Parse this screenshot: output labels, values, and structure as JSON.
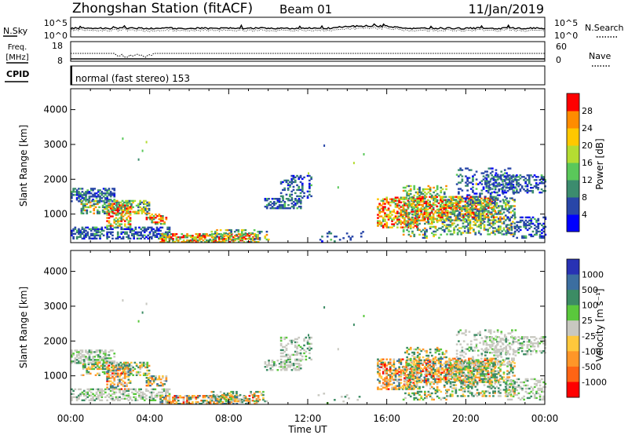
{
  "header": {
    "title": "Zhongshan Station (fitACF)",
    "beam": "Beam 01",
    "date": "11/Jan/2019"
  },
  "status_panels": {
    "nsky_label": "N.Sky",
    "nsky_ticks": [
      "10^5",
      "10^0"
    ],
    "nsearch_label": "N.Search",
    "nsearch_ticks": [
      "10^5",
      "10^0"
    ],
    "freq_label_1": "Freq.",
    "freq_label_2": "[MHz]",
    "freq_ticks": [
      "18",
      "8"
    ],
    "nave_label": "Nave",
    "nave_ticks": [
      "60",
      "0"
    ],
    "cpid_label": "CPID",
    "cpid_text": "normal (fast stereo) 153"
  },
  "chart_data": [
    {
      "type": "heatmap",
      "name": "power",
      "ylabel": "Slant Range [km]",
      "ylim": [
        180,
        4600
      ],
      "yticks": [
        1000,
        2000,
        3000,
        4000
      ],
      "xlim_hours": [
        0,
        24
      ],
      "colorbar_label": "Power [dB]",
      "colorbar_ticks": [
        "4",
        "8",
        "12",
        "16",
        "20",
        "24",
        "28"
      ],
      "colors": [
        "#0000ff",
        "#2846a8",
        "#3c8c6e",
        "#5ac85a",
        "#b4dc32",
        "#ffc800",
        "#ff8c00",
        "#ff0000"
      ]
    },
    {
      "type": "heatmap",
      "name": "velocity",
      "ylabel": "Slant Range [km]",
      "ylim": [
        180,
        4600
      ],
      "yticks": [
        1000,
        2000,
        3000,
        4000
      ],
      "xlim_hours": [
        0,
        24
      ],
      "colorbar_label": "Velocity [m s⁻¹]",
      "colorbar_ticks": [
        "1000",
        "500",
        "100",
        "25",
        "-25",
        "-100",
        "-500",
        "-1000"
      ],
      "colors": [
        "#2832b4",
        "#3c6ea0",
        "#3c8c64",
        "#5ac83c",
        "#c8c8c0",
        "#ffc83c",
        "#ff9628",
        "#ff6414",
        "#ff0000"
      ]
    }
  ],
  "xaxis": {
    "ticks": [
      "00:00",
      "04:00",
      "08:00",
      "12:00",
      "16:00",
      "20:00",
      "00:00"
    ],
    "label": "Time UT"
  }
}
